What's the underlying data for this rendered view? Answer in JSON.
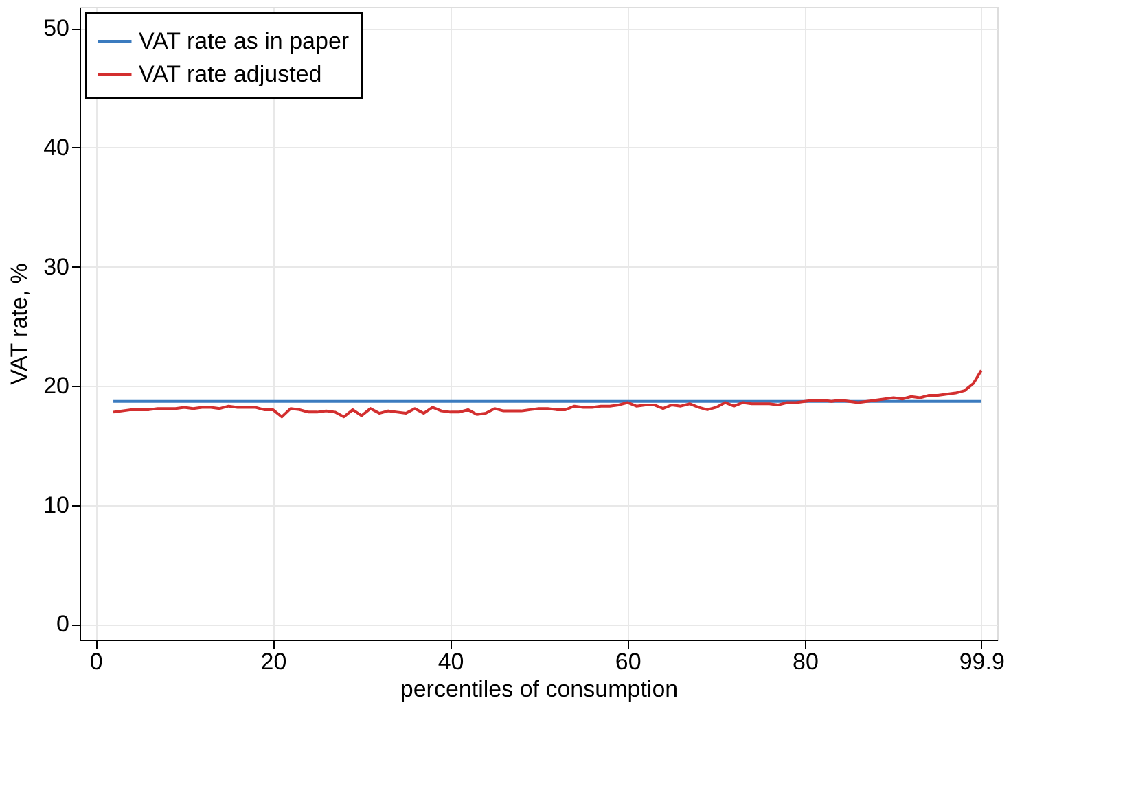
{
  "chart_data": {
    "type": "line",
    "xlabel": "percentiles of consumption",
    "ylabel": "VAT rate, %",
    "xlim": [
      -1.8,
      101.7
    ],
    "ylim": [
      -1.3,
      51.8
    ],
    "xticks": [
      0,
      20,
      40,
      60,
      80,
      99.9
    ],
    "yticks": [
      0,
      10,
      20,
      30,
      40,
      50
    ],
    "grid": true,
    "legend": "top left",
    "line_style": "solid",
    "marker": "none",
    "series": [
      {
        "name": "VAT rate as in paper",
        "color": "#3b7bbf",
        "x": [
          2,
          99.9
        ],
        "values": [
          18.7,
          18.7
        ]
      },
      {
        "name": "VAT rate adjusted",
        "color": "#d32f2f",
        "x": [
          2,
          3,
          4,
          5,
          6,
          7,
          8,
          9,
          10,
          11,
          12,
          13,
          14,
          15,
          16,
          17,
          18,
          19,
          20,
          21,
          22,
          23,
          24,
          25,
          26,
          27,
          28,
          29,
          30,
          31,
          32,
          33,
          34,
          35,
          36,
          37,
          38,
          39,
          40,
          41,
          42,
          43,
          44,
          45,
          46,
          47,
          48,
          49,
          50,
          51,
          52,
          53,
          54,
          55,
          56,
          57,
          58,
          59,
          60,
          61,
          62,
          63,
          64,
          65,
          66,
          67,
          68,
          69,
          70,
          71,
          72,
          73,
          74,
          75,
          76,
          77,
          78,
          79,
          80,
          81,
          82,
          83,
          84,
          85,
          86,
          87,
          88,
          89,
          90,
          91,
          92,
          93,
          94,
          95,
          96,
          97,
          98,
          99,
          99.9
        ],
        "values": [
          17.8,
          17.9,
          18.0,
          18.0,
          18.0,
          18.1,
          18.1,
          18.1,
          18.2,
          18.1,
          18.2,
          18.2,
          18.1,
          18.3,
          18.2,
          18.2,
          18.2,
          18.0,
          18.0,
          17.4,
          18.1,
          18.0,
          17.8,
          17.8,
          17.9,
          17.8,
          17.4,
          18.0,
          17.5,
          18.1,
          17.7,
          17.9,
          17.8,
          17.7,
          18.1,
          17.7,
          18.2,
          17.9,
          17.8,
          17.8,
          18.0,
          17.6,
          17.7,
          18.1,
          17.9,
          17.9,
          17.9,
          18.0,
          18.1,
          18.1,
          18.0,
          18.0,
          18.3,
          18.2,
          18.2,
          18.3,
          18.3,
          18.4,
          18.6,
          18.3,
          18.4,
          18.4,
          18.1,
          18.4,
          18.3,
          18.5,
          18.2,
          18.0,
          18.2,
          18.6,
          18.3,
          18.6,
          18.5,
          18.5,
          18.5,
          18.4,
          18.6,
          18.6,
          18.7,
          18.8,
          18.8,
          18.7,
          18.8,
          18.7,
          18.6,
          18.7,
          18.8,
          18.9,
          19.0,
          18.9,
          19.1,
          19.0,
          19.2,
          19.2,
          19.3,
          19.4,
          19.6,
          20.2,
          21.3
        ]
      }
    ]
  }
}
